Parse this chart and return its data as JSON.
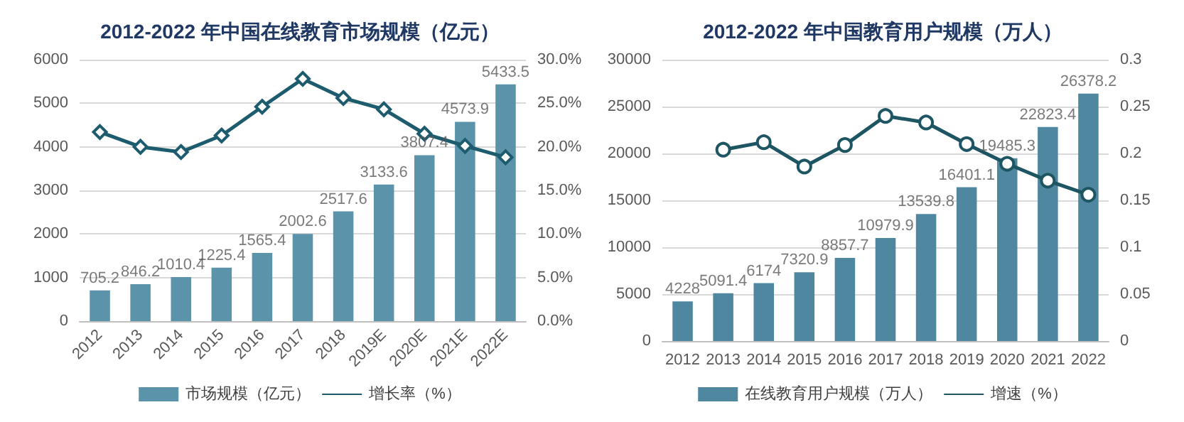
{
  "chart_data": [
    {
      "type": "bar",
      "title": "2012-2022 年中国在线教育市场规模（亿元）",
      "categories": [
        "2012",
        "2013",
        "2014",
        "2015",
        "2016",
        "2017",
        "2018",
        "2019E",
        "2020E",
        "2021E",
        "2022E"
      ],
      "series": [
        {
          "name": "市场规模（亿元）",
          "color": "#5b93aa",
          "values": [
            705.2,
            846.2,
            1010.4,
            1225.4,
            1565.4,
            2002.6,
            2517.6,
            3133.6,
            3807.4,
            4573.9,
            5433.5
          ],
          "value_labels": [
            "705.2",
            "846.2",
            "1010.4",
            "1225.4",
            "1565.4",
            "2002.6",
            "2517.6",
            "3133.6",
            "3807.4",
            "4573.9",
            "5433.5"
          ]
        },
        {
          "name": "增长率（%）",
          "type": "line",
          "axis": "y2",
          "color": "#1d5c6e",
          "values": [
            21.7,
            20.0,
            19.4,
            21.3,
            24.6,
            27.8,
            25.6,
            24.3,
            21.5,
            20.1,
            18.8
          ]
        }
      ],
      "ylim": [
        0,
        6000
      ],
      "yticks": [
        0,
        1000,
        2000,
        3000,
        4000,
        5000,
        6000
      ],
      "y2lim": [
        0,
        30
      ],
      "y2ticks": [
        {
          "value": 0,
          "label": "0.0%"
        },
        {
          "value": 5,
          "label": "5.0%"
        },
        {
          "value": 10,
          "label": "10.0%"
        },
        {
          "value": 15,
          "label": "15.0%"
        },
        {
          "value": 20,
          "label": "20.0%"
        },
        {
          "value": 25,
          "label": "25.0%"
        },
        {
          "value": 30,
          "label": "30.0%"
        }
      ],
      "grid": "y",
      "legend": "bottom",
      "marker": "diamond",
      "line_style": "solid"
    },
    {
      "type": "bar",
      "title": "2012-2022 年中国教育用户规模（万人）",
      "categories": [
        "2012",
        "2013",
        "2014",
        "2015",
        "2016",
        "2017",
        "2018",
        "2019",
        "2020",
        "2021",
        "2022"
      ],
      "series": [
        {
          "name": "在线教育用户规模（万人）",
          "color": "#4f87a1",
          "values": [
            4228,
            5091.4,
            6174,
            7320.9,
            8857.7,
            10979.9,
            13539.8,
            16401.1,
            19485.3,
            22823.4,
            26378.2
          ],
          "value_labels": [
            "4228",
            "5091.4",
            "6174",
            "7320.9",
            "8857.7",
            "10979.9",
            "13539.8",
            "16401.1",
            "19485.3",
            "22823.4",
            "26378.2"
          ]
        },
        {
          "name": "增速（%）",
          "type": "line",
          "axis": "y2",
          "color": "#1d5562",
          "values": [
            null,
            0.204,
            0.212,
            0.186,
            0.209,
            0.24,
            0.233,
            0.21,
            0.189,
            0.171,
            0.156
          ]
        }
      ],
      "ylim": [
        0,
        30000
      ],
      "yticks": [
        0,
        5000,
        10000,
        15000,
        20000,
        25000,
        30000
      ],
      "y2lim": [
        0,
        0.3
      ],
      "y2ticks": [
        0,
        0.05,
        0.1,
        0.15,
        0.2,
        0.25,
        0.3
      ],
      "grid": "y",
      "legend": "bottom",
      "marker": "circle",
      "line_style": "solid"
    }
  ]
}
